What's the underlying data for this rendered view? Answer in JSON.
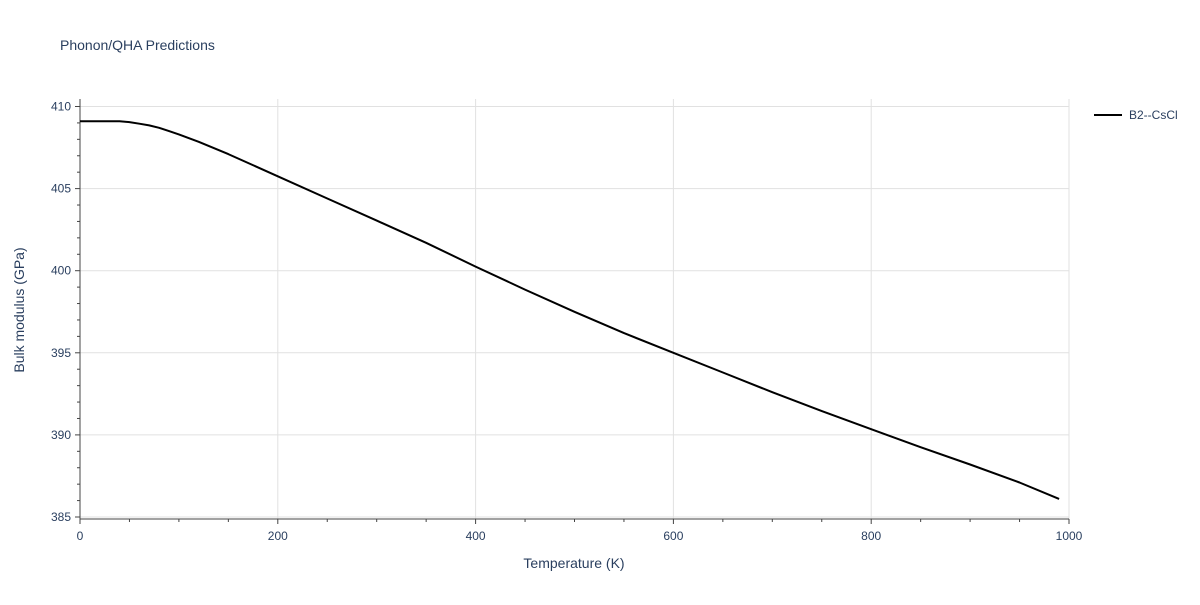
{
  "chart_data": {
    "type": "line",
    "title": "Phonon/QHA Predictions",
    "xlabel": "Temperature (K)",
    "ylabel": "Bulk modulus (GPa)",
    "xlim": [
      0,
      1000
    ],
    "ylim": [
      385,
      410
    ],
    "x_ticks": [
      0,
      200,
      400,
      600,
      800,
      1000
    ],
    "y_ticks": [
      385,
      390,
      395,
      400,
      405,
      410
    ],
    "grid": true,
    "legend_position": "top-right",
    "series": [
      {
        "name": "B2--CsCl",
        "color": "#000000",
        "x": [
          0,
          20,
          40,
          50,
          60,
          70,
          80,
          90,
          100,
          120,
          150,
          200,
          250,
          300,
          350,
          400,
          450,
          500,
          550,
          600,
          650,
          700,
          750,
          800,
          850,
          900,
          950,
          990
        ],
        "y": [
          409.1,
          409.1,
          409.1,
          409.05,
          408.95,
          408.85,
          408.7,
          408.5,
          408.3,
          407.85,
          407.1,
          405.75,
          404.4,
          403.05,
          401.7,
          400.25,
          398.85,
          397.5,
          396.2,
          395.0,
          393.8,
          392.6,
          391.45,
          390.35,
          389.25,
          388.2,
          387.1,
          386.1
        ]
      }
    ]
  }
}
